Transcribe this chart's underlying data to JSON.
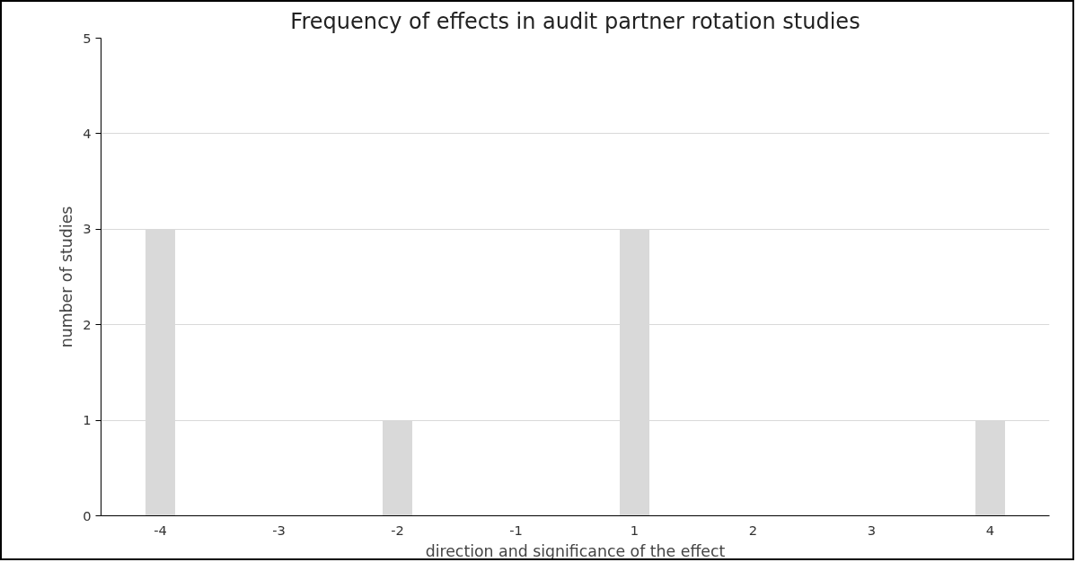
{
  "chart_data": {
    "type": "bar",
    "title": "Frequency of effects in audit partner rotation studies",
    "xlabel": "direction and significance of the effect",
    "ylabel": "number of studies",
    "categories": [
      "-4",
      "-3",
      "-2",
      "-1",
      "1",
      "2",
      "3",
      "4"
    ],
    "values": [
      3,
      0,
      1,
      0,
      3,
      0,
      0,
      1
    ],
    "color": "#d9d9d9",
    "ylim": [
      0,
      5
    ],
    "yticks": [
      0,
      1,
      2,
      3,
      4,
      5
    ],
    "grid": "y"
  }
}
